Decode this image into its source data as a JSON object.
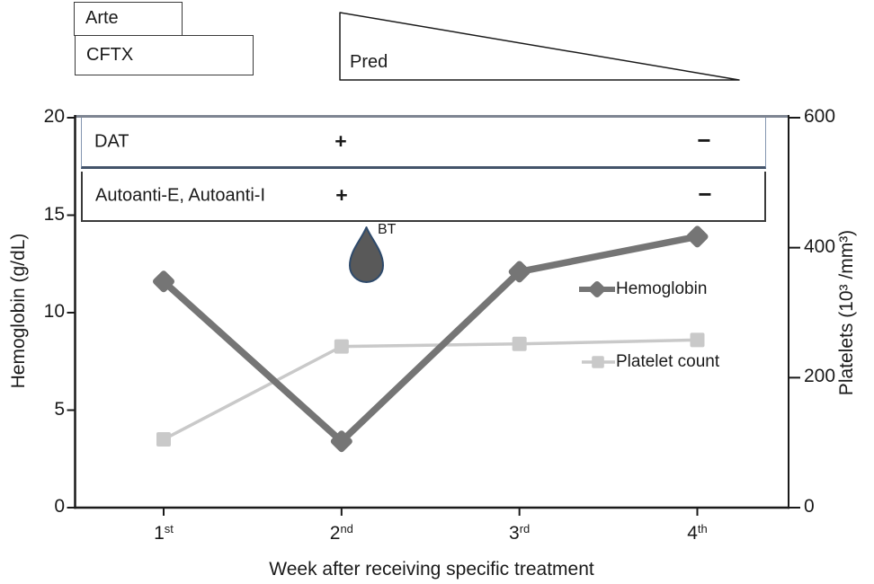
{
  "annotations": {
    "arte_label": "Arte",
    "cftx_label": "CFTX",
    "pred_label": "Pred",
    "bt_label": "BT",
    "dat_row": {
      "label": "DAT",
      "plus": "+",
      "minus": "−"
    },
    "autoanti_row": {
      "label": "Autoanti-E, Autoanti-I",
      "plus": "+",
      "minus": "−"
    }
  },
  "legend": {
    "hemoglobin": "Hemoglobin",
    "platelet": "Platelet count"
  },
  "chart_data": {
    "type": "line",
    "title": "",
    "xlabel": "Week after receiving specific treatment",
    "x_tick_labels": [
      {
        "base": "1",
        "sup": "st"
      },
      {
        "base": "2",
        "sup": "nd"
      },
      {
        "base": "3",
        "sup": "rd"
      },
      {
        "base": "4",
        "sup": "th"
      }
    ],
    "left_axis": {
      "label": "Hemoglobin (g/dL)",
      "range": [
        0,
        20
      ],
      "ticks": [
        0,
        5,
        10,
        15,
        20
      ]
    },
    "right_axis": {
      "label": "Platelets (10³ /mm³)",
      "range": [
        0,
        600
      ],
      "ticks": [
        0,
        200,
        400,
        600
      ]
    },
    "series": [
      {
        "name": "Hemoglobin",
        "axis": "left",
        "marker": "diamond",
        "color": "#757575",
        "line_width": 7.5,
        "values": [
          11.6,
          3.4,
          12.1,
          13.9
        ]
      },
      {
        "name": "Platelet count",
        "axis": "right",
        "marker": "square",
        "color": "#c9c9c9",
        "line_width": 3.5,
        "values": [
          105,
          248,
          252,
          258
        ]
      }
    ],
    "grid": false,
    "legend_position": "inside-right"
  },
  "colors": {
    "axis": "#1a1a1a",
    "plot_top_line": "#7e8592",
    "dat_border": "#8496b0",
    "dat_divider": "#44546a",
    "autoanti_border": "#3a3a3a",
    "drop_fill": "#595959",
    "drop_stroke": "#2e4a6b"
  }
}
